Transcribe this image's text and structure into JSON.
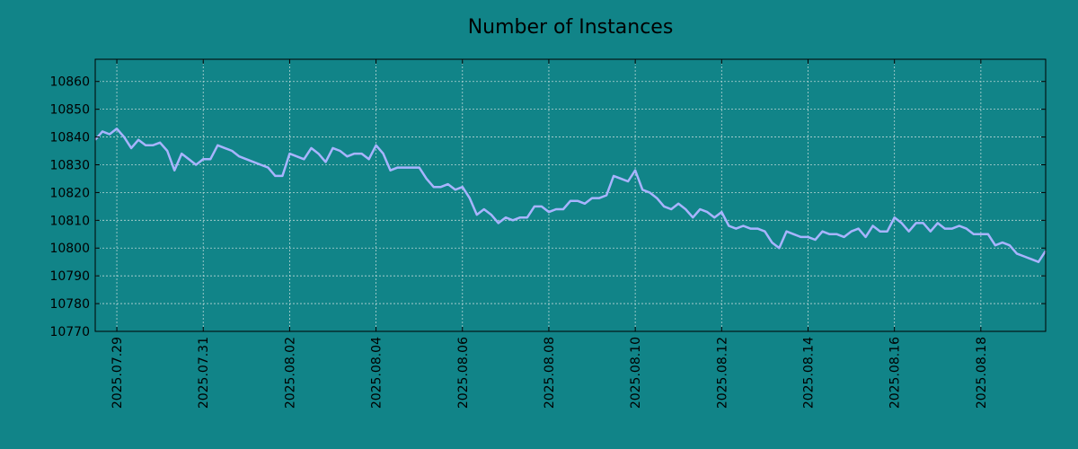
{
  "chart_data": {
    "type": "line",
    "title": "Number of Instances",
    "xlabel": "",
    "ylabel": "",
    "x_range": [
      "2025-07-28T12:00",
      "2025-08-19T12:00"
    ],
    "ylim": [
      10770,
      10868
    ],
    "yticks": [
      10770,
      10780,
      10790,
      10800,
      10810,
      10820,
      10830,
      10840,
      10850,
      10860
    ],
    "xticks": [
      "2025-07-29",
      "2025-07-31",
      "2025-08-02",
      "2025-08-04",
      "2025-08-06",
      "2025-08-08",
      "2025-08-10",
      "2025-08-12",
      "2025-08-14",
      "2025-08-16",
      "2025-08-18"
    ],
    "xtick_labels": [
      "2025.07.29",
      "2025.07.31",
      "2025.08.02",
      "2025.08.04",
      "2025.08.06",
      "2025.08.08",
      "2025.08.10",
      "2025.08.12",
      "2025.08.14",
      "2025.08.16",
      "2025.08.18"
    ],
    "grid": true,
    "colors": {
      "background": "#118488",
      "line": "#a8b4ff",
      "grid": "#b9d6d6"
    },
    "series": [
      {
        "name": "",
        "x": [
          "2025-07-28T12:00",
          "2025-07-28T16:00",
          "2025-07-28T20:00",
          "2025-07-29T00:00",
          "2025-07-29T04:00",
          "2025-07-29T08:00",
          "2025-07-29T12:00",
          "2025-07-29T16:00",
          "2025-07-29T20:00",
          "2025-07-30T00:00",
          "2025-07-30T04:00",
          "2025-07-30T08:00",
          "2025-07-30T12:00",
          "2025-07-30T16:00",
          "2025-07-30T20:00",
          "2025-07-31T00:00",
          "2025-07-31T04:00",
          "2025-07-31T08:00",
          "2025-07-31T12:00",
          "2025-07-31T16:00",
          "2025-07-31T20:00",
          "2025-08-01T00:00",
          "2025-08-01T04:00",
          "2025-08-01T08:00",
          "2025-08-01T12:00",
          "2025-08-01T16:00",
          "2025-08-01T20:00",
          "2025-08-02T00:00",
          "2025-08-02T04:00",
          "2025-08-02T08:00",
          "2025-08-02T12:00",
          "2025-08-02T16:00",
          "2025-08-02T20:00",
          "2025-08-03T00:00",
          "2025-08-03T04:00",
          "2025-08-03T08:00",
          "2025-08-03T12:00",
          "2025-08-03T16:00",
          "2025-08-03T20:00",
          "2025-08-04T00:00",
          "2025-08-04T04:00",
          "2025-08-04T08:00",
          "2025-08-04T12:00",
          "2025-08-04T16:00",
          "2025-08-04T20:00",
          "2025-08-05T00:00",
          "2025-08-05T04:00",
          "2025-08-05T08:00",
          "2025-08-05T12:00",
          "2025-08-05T16:00",
          "2025-08-05T20:00",
          "2025-08-06T00:00",
          "2025-08-06T04:00",
          "2025-08-06T08:00",
          "2025-08-06T12:00",
          "2025-08-06T16:00",
          "2025-08-06T20:00",
          "2025-08-07T00:00",
          "2025-08-07T04:00",
          "2025-08-07T08:00",
          "2025-08-07T12:00",
          "2025-08-07T16:00",
          "2025-08-07T20:00",
          "2025-08-08T00:00",
          "2025-08-08T04:00",
          "2025-08-08T08:00",
          "2025-08-08T12:00",
          "2025-08-08T16:00",
          "2025-08-08T20:00",
          "2025-08-09T00:00",
          "2025-08-09T04:00",
          "2025-08-09T08:00",
          "2025-08-09T12:00",
          "2025-08-09T16:00",
          "2025-08-09T20:00",
          "2025-08-10T00:00",
          "2025-08-10T04:00",
          "2025-08-10T08:00",
          "2025-08-10T12:00",
          "2025-08-10T16:00",
          "2025-08-10T20:00",
          "2025-08-11T00:00",
          "2025-08-11T04:00",
          "2025-08-11T08:00",
          "2025-08-11T12:00",
          "2025-08-11T16:00",
          "2025-08-11T20:00",
          "2025-08-12T00:00",
          "2025-08-12T04:00",
          "2025-08-12T08:00",
          "2025-08-12T12:00",
          "2025-08-12T16:00",
          "2025-08-12T20:00",
          "2025-08-13T00:00",
          "2025-08-13T04:00",
          "2025-08-13T08:00",
          "2025-08-13T12:00",
          "2025-08-13T16:00",
          "2025-08-13T20:00",
          "2025-08-14T00:00",
          "2025-08-14T04:00",
          "2025-08-14T08:00",
          "2025-08-14T12:00",
          "2025-08-14T16:00",
          "2025-08-14T20:00",
          "2025-08-15T00:00",
          "2025-08-15T04:00",
          "2025-08-15T08:00",
          "2025-08-15T12:00",
          "2025-08-15T16:00",
          "2025-08-15T20:00",
          "2025-08-16T00:00",
          "2025-08-16T04:00",
          "2025-08-16T08:00",
          "2025-08-16T12:00",
          "2025-08-16T16:00",
          "2025-08-16T20:00",
          "2025-08-17T00:00",
          "2025-08-17T04:00",
          "2025-08-17T08:00",
          "2025-08-17T12:00",
          "2025-08-17T16:00",
          "2025-08-17T20:00",
          "2025-08-18T00:00",
          "2025-08-18T04:00",
          "2025-08-18T08:00",
          "2025-08-18T12:00",
          "2025-08-18T16:00",
          "2025-08-18T20:00",
          "2025-08-19T00:00",
          "2025-08-19T04:00",
          "2025-08-19T08:00",
          "2025-08-19T12:00"
        ],
        "y": [
          10839,
          10842,
          10841,
          10843,
          10840,
          10836,
          10839,
          10837,
          10837,
          10838,
          10835,
          10828,
          10834,
          10832,
          10830,
          10832,
          10832,
          10837,
          10836,
          10835,
          10833,
          10832,
          10831,
          10830,
          10829,
          10826,
          10826,
          10834,
          10833,
          10832,
          10836,
          10834,
          10831,
          10836,
          10835,
          10833,
          10834,
          10834,
          10832,
          10837,
          10834,
          10828,
          10829,
          10829,
          10829,
          10829,
          10825,
          10822,
          10822,
          10823,
          10821,
          10822,
          10818,
          10812,
          10814,
          10812,
          10809,
          10811,
          10810,
          10811,
          10811,
          10815,
          10815,
          10813,
          10814,
          10814,
          10817,
          10817,
          10816,
          10818,
          10818,
          10819,
          10826,
          10825,
          10824,
          10828,
          10821,
          10820,
          10818,
          10815,
          10814,
          10816,
          10814,
          10811,
          10814,
          10813,
          10811,
          10813,
          10808,
          10807,
          10808,
          10807,
          10807,
          10806,
          10802,
          10800,
          10806,
          10805,
          10804,
          10804,
          10803,
          10806,
          10805,
          10805,
          10804,
          10806,
          10807,
          10804,
          10808,
          10806,
          10806,
          10811,
          10809,
          10806,
          10809,
          10809,
          10806,
          10809,
          10807,
          10807,
          10808,
          10807,
          10805,
          10805,
          10805,
          10801,
          10802,
          10801,
          10798,
          10797,
          10796,
          10795,
          10799
        ]
      }
    ]
  }
}
